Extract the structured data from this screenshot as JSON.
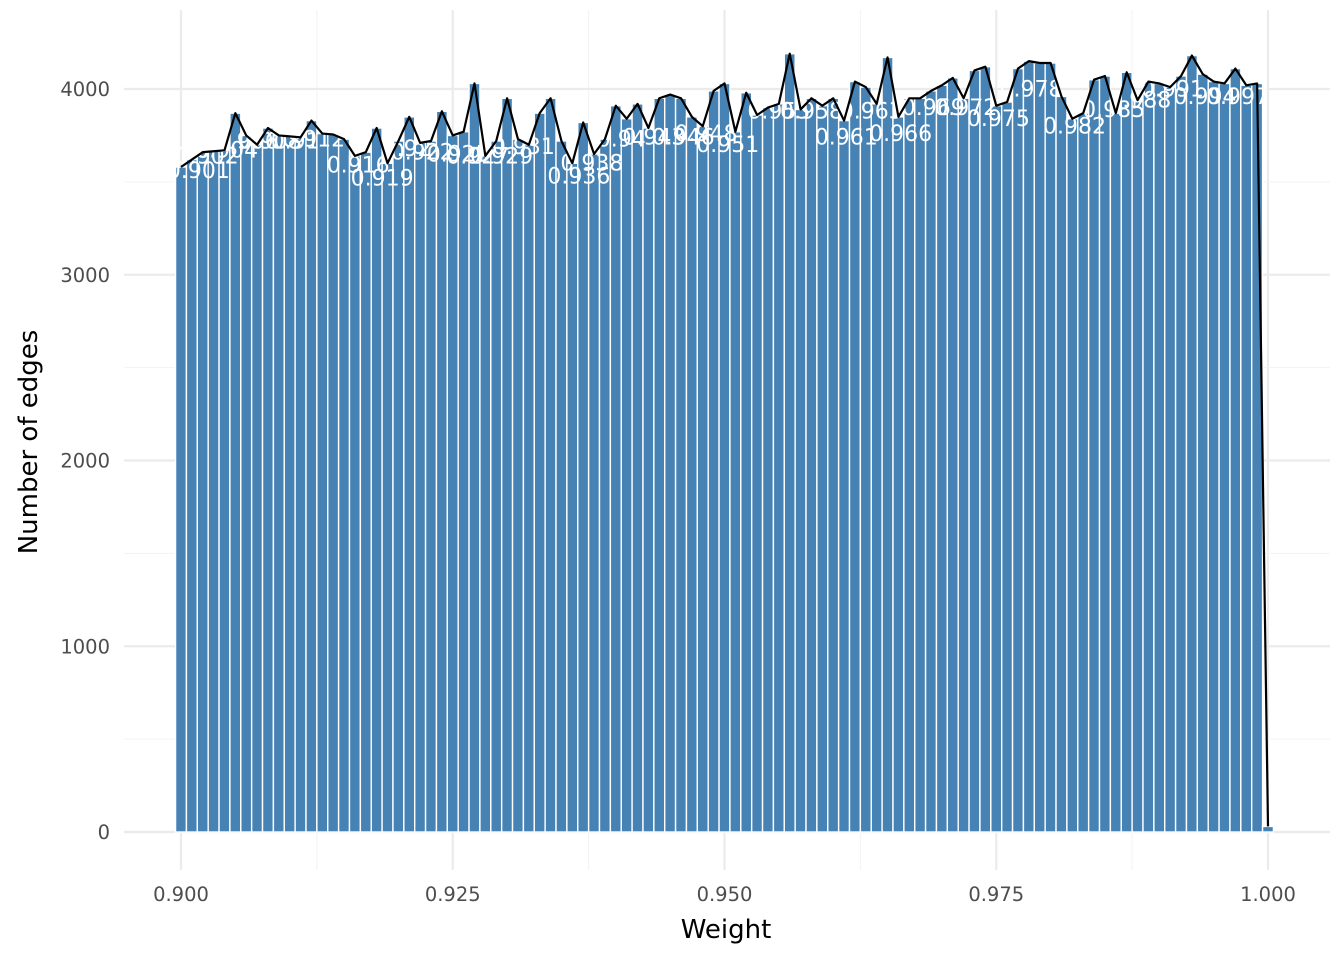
{
  "chart_data": {
    "type": "bar",
    "xlabel": "Weight",
    "ylabel": "Number of edges",
    "xlim": [
      0.895,
      1.0055
    ],
    "ylim": [
      0,
      4400
    ],
    "grid": true,
    "legend": "none",
    "x_ticks": [
      {
        "value": 0.9,
        "label": "0.900"
      },
      {
        "value": 0.925,
        "label": "0.925"
      },
      {
        "value": 0.95,
        "label": "0.950"
      },
      {
        "value": 0.975,
        "label": "0.975"
      },
      {
        "value": 1.0,
        "label": "1.000"
      }
    ],
    "y_ticks": [
      {
        "value": 0,
        "label": "0"
      },
      {
        "value": 1000,
        "label": "1000"
      },
      {
        "value": 2000,
        "label": "2000"
      },
      {
        "value": 3000,
        "label": "3000"
      },
      {
        "value": 4000,
        "label": "4000"
      }
    ],
    "bin_start": 0.9,
    "bin_width": 0.001,
    "values": [
      3580,
      3620,
      3660,
      3665,
      3670,
      3870,
      3750,
      3700,
      3790,
      3750,
      3745,
      3740,
      3830,
      3760,
      3755,
      3730,
      3640,
      3660,
      3790,
      3600,
      3720,
      3850,
      3710,
      3720,
      3880,
      3750,
      3770,
      4030,
      3640,
      3720,
      3950,
      3730,
      3700,
      3870,
      3950,
      3720,
      3600,
      3820,
      3650,
      3730,
      3910,
      3840,
      3920,
      3790,
      3950,
      3970,
      3950,
      3850,
      3800,
      3990,
      4030,
      3770,
      3980,
      3860,
      3900,
      3920,
      4190,
      3890,
      3950,
      3910,
      3950,
      3830,
      4040,
      4010,
      3920,
      4170,
      3850,
      3950,
      3950,
      3990,
      4020,
      4060,
      3950,
      4100,
      4120,
      3910,
      3930,
      4110,
      4150,
      4140,
      4140,
      3960,
      3840,
      3870,
      4050,
      4070,
      3870,
      4090,
      3940,
      4040,
      4030,
      4010,
      4070,
      4180,
      4080,
      4040,
      4030,
      4110,
      4020,
      4030,
      30
    ],
    "bar_color": "#4682b4",
    "line_color": "#000000",
    "bar_labels": [
      {
        "text": "0.901",
        "x": 0.9016,
        "y": 3520
      },
      {
        "text": "0.902",
        "x": 0.9024,
        "y": 3600
      },
      {
        "text": "0.904",
        "x": 0.9042,
        "y": 3630
      },
      {
        "text": "0.906",
        "x": 0.9061,
        "y": 3680
      },
      {
        "text": "0.908",
        "x": 0.9082,
        "y": 3680
      },
      {
        "text": "0.91",
        "x": 0.9105,
        "y": 3680
      },
      {
        "text": "0.912",
        "x": 0.9122,
        "y": 3690
      },
      {
        "text": "0.916",
        "x": 0.9163,
        "y": 3550
      },
      {
        "text": "0.919",
        "x": 0.9185,
        "y": 3480
      },
      {
        "text": "0.92",
        "x": 0.9208,
        "y": 3640
      },
      {
        "text": "0.922",
        "x": 0.9222,
        "y": 3620
      },
      {
        "text": "0.925",
        "x": 0.9255,
        "y": 3610
      },
      {
        "text": "0.927",
        "x": 0.9273,
        "y": 3600
      },
      {
        "text": "0.929",
        "x": 0.9295,
        "y": 3600
      },
      {
        "text": "0.931",
        "x": 0.9315,
        "y": 3650
      },
      {
        "text": "0.936",
        "x": 0.9366,
        "y": 3490
      },
      {
        "text": "0.938",
        "x": 0.9378,
        "y": 3560
      },
      {
        "text": "0.94",
        "x": 0.9405,
        "y": 3690
      },
      {
        "text": "0.943",
        "x": 0.9435,
        "y": 3700
      },
      {
        "text": "0.946",
        "x": 0.9462,
        "y": 3700
      },
      {
        "text": "0.948",
        "x": 0.9483,
        "y": 3720
      },
      {
        "text": "0.951",
        "x": 0.9503,
        "y": 3660
      },
      {
        "text": "0.955",
        "x": 0.955,
        "y": 3840
      },
      {
        "text": "0.958",
        "x": 0.958,
        "y": 3840
      },
      {
        "text": "0.961",
        "x": 0.9612,
        "y": 3700
      },
      {
        "text": "0.963",
        "x": 0.9635,
        "y": 3840
      },
      {
        "text": "0.966",
        "x": 0.9662,
        "y": 3720
      },
      {
        "text": "0.969",
        "x": 0.9692,
        "y": 3860
      },
      {
        "text": "0.972",
        "x": 0.9722,
        "y": 3860
      },
      {
        "text": "0.975",
        "x": 0.9752,
        "y": 3800
      },
      {
        "text": "0.978",
        "x": 0.9782,
        "y": 3960
      },
      {
        "text": "0.982",
        "x": 0.9822,
        "y": 3760
      },
      {
        "text": "0.985",
        "x": 0.9858,
        "y": 3850
      },
      {
        "text": "0.988",
        "x": 0.9882,
        "y": 3900
      },
      {
        "text": "0.991",
        "x": 0.9912,
        "y": 3960
      },
      {
        "text": "0.994",
        "x": 0.9942,
        "y": 3920
      },
      {
        "text": "0.997",
        "x": 0.9972,
        "y": 3920
      }
    ]
  }
}
